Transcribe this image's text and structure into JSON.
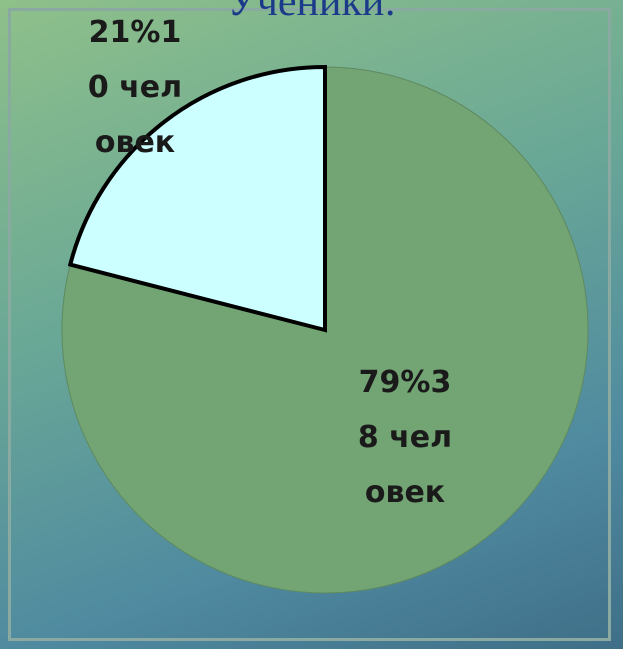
{
  "chart_data": {
    "type": "pie",
    "title": "Ученики:",
    "values": [
      79,
      21
    ],
    "value_labels": [
      "79%38 человек",
      "21%10 человек"
    ],
    "colors": [
      "#72a474",
      "#ccffff"
    ]
  }
}
